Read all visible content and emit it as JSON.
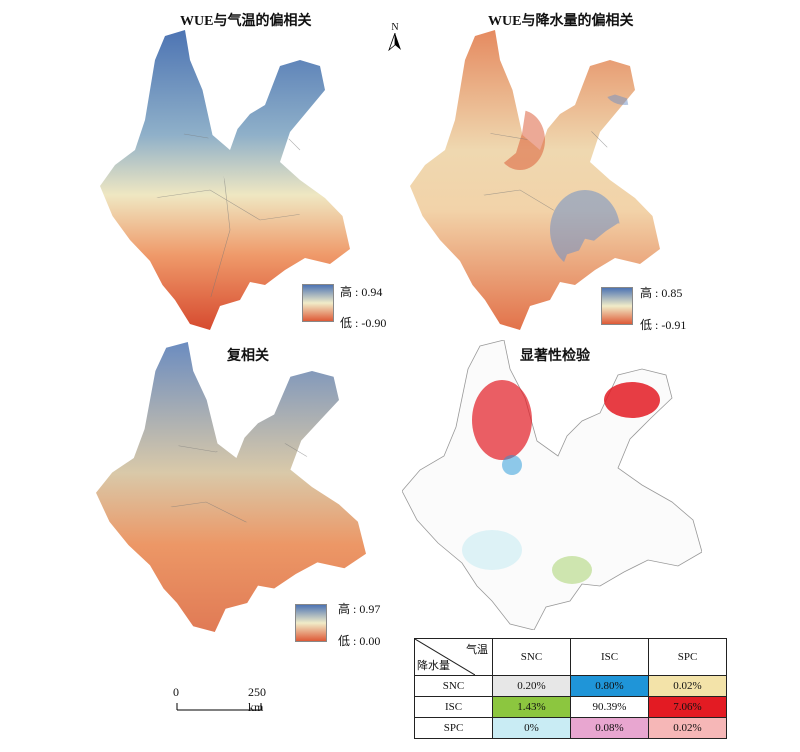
{
  "titles": {
    "p1": "WUE与气温的偏相关",
    "p2": "WUE与降水量的偏相关",
    "p3": "复相关",
    "p4": "显著性检验"
  },
  "legends": {
    "p1": {
      "high": "高 : 0.94",
      "low": "低 : -0.90"
    },
    "p2": {
      "high": "高 : 0.85",
      "low": "低 : -0.91"
    },
    "p3": {
      "high": "高 : 0.97",
      "low": "低 : 0.00"
    }
  },
  "north_label": "N",
  "scale": {
    "start": "0",
    "end": "250 km"
  },
  "table": {
    "corner_top": "气温",
    "corner_bottom": "降水量",
    "col_headers": [
      "SNC",
      "ISC",
      "SPC"
    ],
    "rows": [
      {
        "label": "SNC",
        "cells": [
          "0.20%",
          "0.80%",
          "0.02%"
        ]
      },
      {
        "label": "ISC",
        "cells": [
          "1.43%",
          "90.39%",
          "7.06%"
        ]
      },
      {
        "label": "SPC",
        "cells": [
          "0%",
          "0.08%",
          "0.02%"
        ]
      }
    ]
  },
  "colors": {
    "ramp_high": "#4d74b3",
    "ramp_mid": "#f1ecc8",
    "ramp_low": "#de5a37"
  }
}
